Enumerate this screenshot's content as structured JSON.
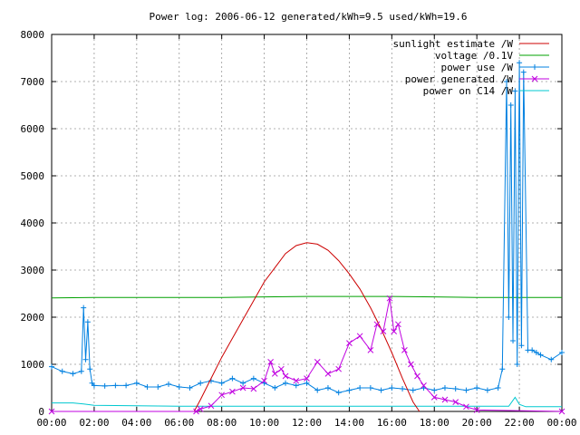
{
  "chart_data": {
    "type": "line",
    "title": "Power log: 2006-06-12 generated/kWh=9.5 used/kWh=19.6",
    "xlabel": "",
    "ylabel": "",
    "xlim": [
      0,
      24
    ],
    "ylim": [
      0,
      8000
    ],
    "x_ticks": [
      "00:00",
      "02:00",
      "04:00",
      "06:00",
      "08:00",
      "10:00",
      "12:00",
      "14:00",
      "16:00",
      "18:00",
      "20:00",
      "22:00",
      "00:00"
    ],
    "y_ticks": [
      "0",
      "1000",
      "2000",
      "3000",
      "4000",
      "5000",
      "6000",
      "7000",
      "8000"
    ],
    "grid": true,
    "legend_position": "top-right",
    "series": [
      {
        "name": "sunlight estimate /W",
        "color": "#cc0000",
        "marker": "none",
        "x": [
          6.7,
          7.0,
          7.5,
          8.0,
          8.5,
          9.0,
          9.5,
          10.0,
          10.5,
          11.0,
          11.5,
          12.0,
          12.5,
          13.0,
          13.5,
          14.0,
          14.5,
          15.0,
          15.5,
          16.0,
          16.5,
          17.0,
          17.3
        ],
        "y": [
          0,
          250,
          700,
          1150,
          1550,
          1950,
          2350,
          2750,
          3050,
          3350,
          3520,
          3580,
          3550,
          3420,
          3200,
          2920,
          2600,
          2200,
          1750,
          1250,
          700,
          200,
          0
        ]
      },
      {
        "name": "voltage /0.1V",
        "color": "#00a000",
        "marker": "none",
        "x": [
          0,
          2,
          4,
          6,
          8,
          10,
          12,
          14,
          16,
          18,
          20,
          22,
          24
        ],
        "y": [
          2410,
          2420,
          2420,
          2420,
          2420,
          2430,
          2440,
          2440,
          2440,
          2430,
          2420,
          2420,
          2420
        ]
      },
      {
        "name": "power use /W",
        "color": "#0080e0",
        "marker": "plus",
        "x": [
          0,
          0.5,
          1.0,
          1.4,
          1.5,
          1.6,
          1.7,
          1.8,
          1.9,
          2.0,
          2.5,
          3.0,
          3.5,
          4.0,
          4.5,
          5.0,
          5.5,
          6.0,
          6.5,
          7.0,
          7.5,
          8.0,
          8.5,
          9.0,
          9.5,
          10.0,
          10.5,
          11.0,
          11.5,
          12.0,
          12.5,
          13.0,
          13.5,
          14.0,
          14.5,
          15.0,
          15.5,
          16.0,
          16.5,
          17.0,
          17.5,
          18.0,
          18.5,
          19.0,
          19.5,
          20.0,
          20.5,
          21.0,
          21.2,
          21.4,
          21.5,
          21.6,
          21.7,
          21.8,
          21.9,
          22.0,
          22.1,
          22.2,
          22.4,
          22.6,
          22.8,
          23.0,
          23.5,
          24.0
        ],
        "y": [
          950,
          850,
          800,
          850,
          2200,
          1100,
          1900,
          900,
          600,
          550,
          540,
          550,
          550,
          600,
          520,
          520,
          580,
          520,
          500,
          600,
          650,
          600,
          700,
          600,
          700,
          600,
          500,
          600,
          550,
          600,
          450,
          500,
          400,
          450,
          500,
          500,
          450,
          500,
          480,
          450,
          500,
          450,
          500,
          480,
          450,
          500,
          450,
          500,
          900,
          7000,
          2000,
          6500,
          1500,
          6800,
          1000,
          7400,
          1400,
          7200,
          1300,
          1300,
          1250,
          1200,
          1100,
          1250
        ]
      },
      {
        "name": "power generated /W",
        "color": "#c000e0",
        "marker": "x",
        "x": [
          0,
          6.8,
          7.0,
          7.5,
          8.0,
          8.5,
          9.0,
          9.5,
          10.0,
          10.3,
          10.5,
          10.8,
          11.0,
          11.5,
          12.0,
          12.5,
          13.0,
          13.5,
          14.0,
          14.5,
          15.0,
          15.3,
          15.6,
          15.9,
          16.1,
          16.3,
          16.6,
          16.9,
          17.2,
          17.5,
          18.0,
          18.5,
          19.0,
          19.5,
          20.0,
          24.0
        ],
        "y": [
          0,
          0,
          50,
          120,
          350,
          420,
          500,
          480,
          650,
          1050,
          800,
          900,
          750,
          650,
          700,
          1050,
          800,
          900,
          1450,
          1600,
          1300,
          1850,
          1700,
          2400,
          1700,
          1850,
          1300,
          1000,
          750,
          550,
          300,
          250,
          200,
          100,
          30,
          0
        ]
      },
      {
        "name": "power on C14 /W",
        "color": "#00c8d0",
        "marker": "none",
        "x": [
          0,
          1.0,
          1.5,
          2.0,
          4.0,
          6.0,
          8.0,
          10.0,
          12.0,
          14.0,
          16.0,
          18.0,
          20.0,
          21.5,
          21.8,
          22.0,
          22.3,
          24.0
        ],
        "y": [
          180,
          180,
          160,
          130,
          120,
          110,
          110,
          110,
          110,
          110,
          110,
          110,
          110,
          110,
          300,
          150,
          100,
          100
        ]
      }
    ]
  }
}
